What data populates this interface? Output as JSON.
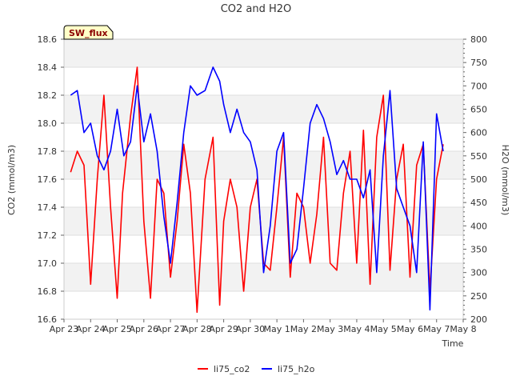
{
  "chart_data": {
    "type": "line",
    "title": "CO2 and H2O",
    "xlabel": "Time",
    "ylabel_left": "CO2 (mmol/m3)",
    "ylabel_right": "H2O (mmol/m3)",
    "badge": "SW_flux",
    "x_ticks": [
      "Apr 23",
      "Apr 24",
      "Apr 25",
      "Apr 26",
      "Apr 27",
      "Apr 28",
      "Apr 29",
      "Apr 30",
      "May 1",
      "May 2",
      "May 3",
      "May 4",
      "May 5",
      "May 6",
      "May 7",
      "May 8"
    ],
    "x_range_days": [
      0,
      15
    ],
    "y_left": {
      "ylim": [
        16.6,
        18.6
      ],
      "ticks": [
        "16.6",
        "16.8",
        "17.0",
        "17.2",
        "17.4",
        "17.6",
        "17.8",
        "18.0",
        "18.2",
        "18.4",
        "18.6"
      ]
    },
    "y_right": {
      "ylim": [
        200,
        800
      ],
      "ticks": [
        "200",
        "250",
        "300",
        "350",
        "400",
        "450",
        "500",
        "550",
        "600",
        "650",
        "700",
        "750",
        "800"
      ]
    },
    "series": [
      {
        "name": "li75_co2",
        "color": "#ff0000",
        "axis": "left",
        "x": [
          0.25,
          0.5,
          0.75,
          1.0,
          1.25,
          1.5,
          1.75,
          2.0,
          2.2,
          2.5,
          2.75,
          3.0,
          3.25,
          3.5,
          3.75,
          4.0,
          4.25,
          4.5,
          4.75,
          5.0,
          5.3,
          5.6,
          5.85,
          6.0,
          6.25,
          6.5,
          6.75,
          7.0,
          7.25,
          7.5,
          7.75,
          8.0,
          8.25,
          8.5,
          8.75,
          9.0,
          9.25,
          9.5,
          9.75,
          10.0,
          10.25,
          10.5,
          10.75,
          11.0,
          11.25,
          11.5,
          11.75,
          12.0,
          12.25,
          12.5,
          12.75,
          13.0,
          13.25,
          13.5,
          13.75,
          14.0,
          14.25
        ],
        "values": [
          17.65,
          17.8,
          17.7,
          16.85,
          17.6,
          18.2,
          17.4,
          16.75,
          17.5,
          18.05,
          18.4,
          17.3,
          16.75,
          17.6,
          17.5,
          16.9,
          17.3,
          17.85,
          17.5,
          16.65,
          17.6,
          17.9,
          16.7,
          17.3,
          17.6,
          17.4,
          16.8,
          17.4,
          17.6,
          17.0,
          16.95,
          17.4,
          17.9,
          16.9,
          17.5,
          17.4,
          17.0,
          17.35,
          17.9,
          17.0,
          16.95,
          17.5,
          17.8,
          17.0,
          17.95,
          16.85,
          17.9,
          18.2,
          16.95,
          17.6,
          17.85,
          16.9,
          17.7,
          17.85,
          16.8,
          17.6,
          17.85
        ]
      },
      {
        "name": "li75_h2o",
        "color": "#0000ff",
        "axis": "right",
        "x": [
          0.25,
          0.5,
          0.75,
          1.0,
          1.25,
          1.5,
          1.75,
          2.0,
          2.25,
          2.5,
          2.75,
          3.0,
          3.25,
          3.5,
          3.75,
          4.0,
          4.25,
          4.5,
          4.75,
          5.0,
          5.3,
          5.6,
          5.85,
          6.0,
          6.25,
          6.5,
          6.75,
          7.0,
          7.25,
          7.5,
          7.75,
          8.0,
          8.25,
          8.5,
          8.75,
          9.0,
          9.25,
          9.5,
          9.75,
          10.0,
          10.25,
          10.5,
          10.75,
          11.0,
          11.25,
          11.5,
          11.75,
          12.0,
          12.25,
          12.5,
          12.75,
          13.0,
          13.25,
          13.5,
          13.75,
          14.0,
          14.25
        ],
        "values": [
          680,
          690,
          600,
          620,
          550,
          520,
          560,
          650,
          550,
          580,
          700,
          580,
          640,
          560,
          420,
          320,
          450,
          600,
          700,
          680,
          690,
          740,
          710,
          660,
          600,
          650,
          600,
          580,
          520,
          300,
          400,
          560,
          600,
          320,
          350,
          480,
          620,
          660,
          630,
          580,
          510,
          540,
          500,
          500,
          460,
          520,
          300,
          550,
          690,
          480,
          440,
          400,
          300,
          580,
          220,
          640,
          560
        ]
      }
    ],
    "legend": [
      "li75_co2",
      "li75_h2o"
    ]
  }
}
